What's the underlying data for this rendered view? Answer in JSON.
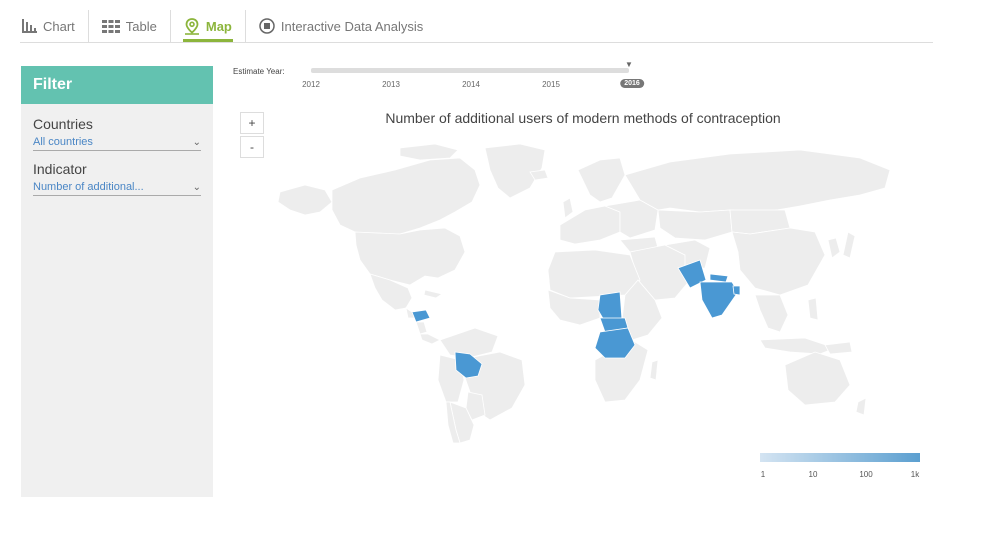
{
  "tabs": [
    {
      "label": "Chart",
      "icon": "bar-chart-icon",
      "active": false
    },
    {
      "label": "Table",
      "icon": "table-grid-icon",
      "active": false
    },
    {
      "label": "Map",
      "icon": "map-pin-icon",
      "active": true
    },
    {
      "label": "Interactive Data Analysis",
      "icon": "record-icon",
      "active": false
    }
  ],
  "filter": {
    "title": "Filter",
    "countries_label": "Countries",
    "countries_value": "All countries",
    "indicator_label": "Indicator",
    "indicator_value": "Number of additional..."
  },
  "year_slider": {
    "label": "Estimate Year:",
    "years": [
      "2012",
      "2013",
      "2014",
      "2015"
    ],
    "selected": "2016"
  },
  "zoom": {
    "in": "+",
    "out": "-"
  },
  "map": {
    "title": "Number of additional users of modern methods of contraception",
    "highlighted_countries": [
      "India",
      "Pakistan",
      "Bangladesh",
      "Nepal",
      "Bhutan",
      "Chad",
      "Central African Republic",
      "Democratic Republic of the Congo",
      "Bolivia",
      "Honduras"
    ],
    "colors": {
      "land": "#ededed",
      "border": "#ffffff",
      "highlight": "#4a98d3"
    }
  },
  "legend": {
    "labels": [
      "1",
      "10",
      "100",
      "1k"
    ],
    "scale": "log",
    "color_low": "#d4e4f2",
    "color_high": "#5b9fd0"
  }
}
